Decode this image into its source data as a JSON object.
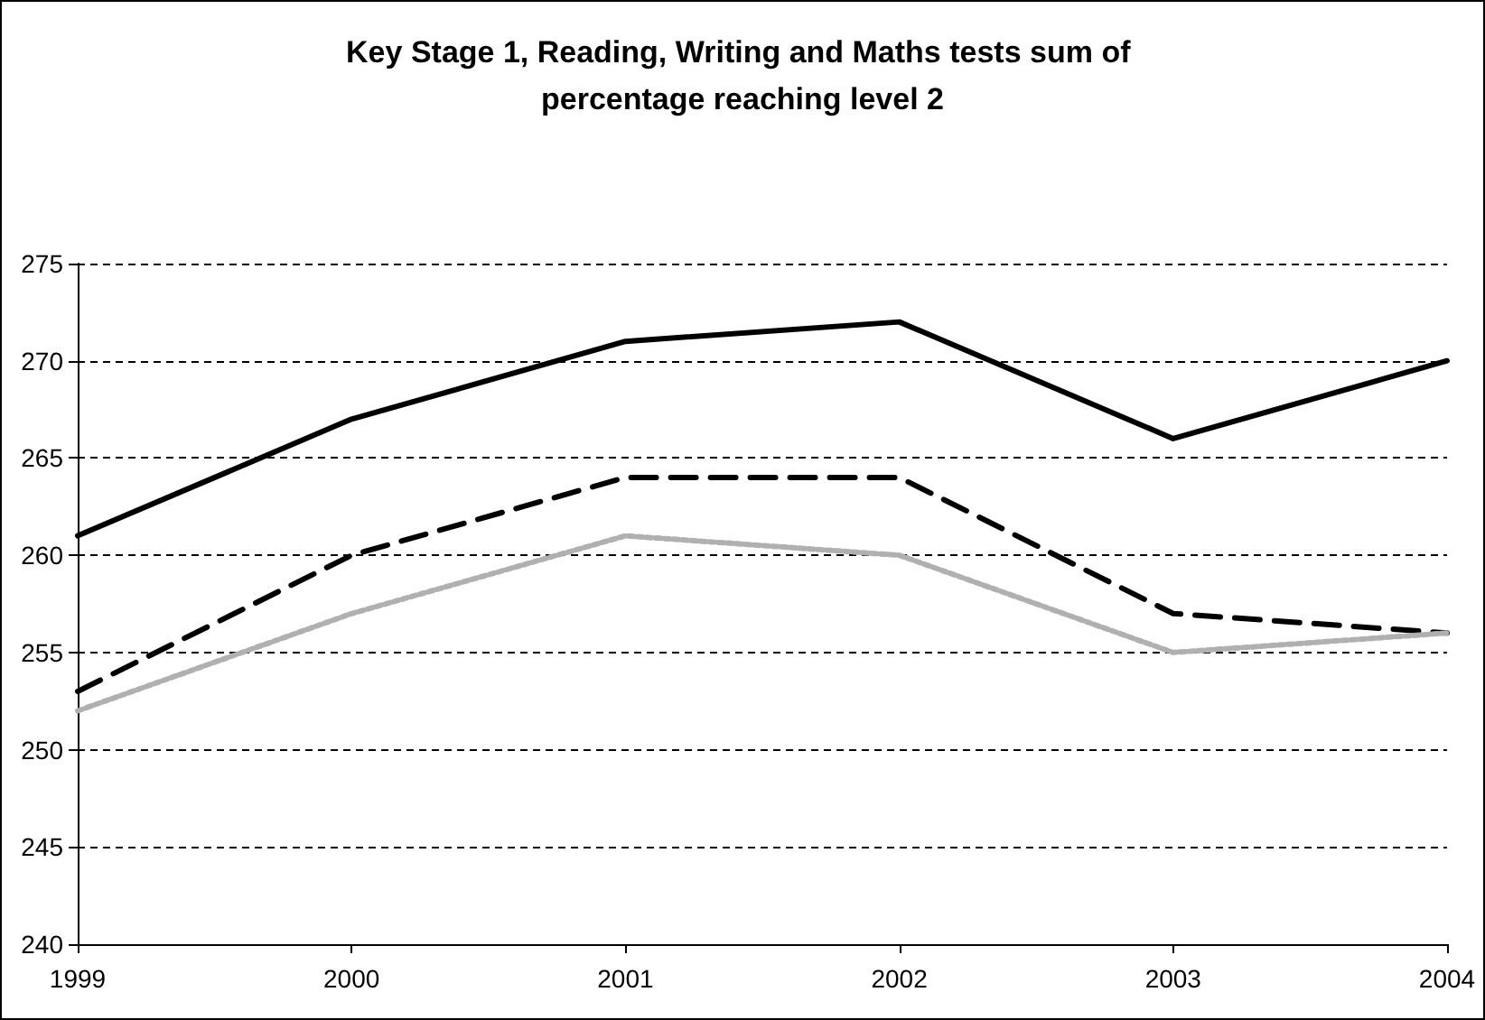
{
  "chart_data": {
    "type": "line",
    "title": "Key Stage 1, Reading, Writing and Maths tests sum of percentage reaching level 2",
    "categories": [
      "1999",
      "2000",
      "2001",
      "2002",
      "2003",
      "2004"
    ],
    "series": [
      {
        "color": "#000000",
        "line_style": "solid",
        "values": [
          261,
          267,
          271,
          272,
          266,
          270
        ]
      },
      {
        "color": "#000000",
        "line_style": "dashed",
        "values": [
          253,
          260,
          264,
          264,
          257,
          256
        ]
      },
      {
        "color": "#b0b0b0",
        "line_style": "dotted",
        "values": [
          252,
          257,
          261,
          260,
          255,
          256
        ]
      }
    ],
    "ylim": [
      240,
      275
    ],
    "yticks": [
      240,
      245,
      250,
      255,
      260,
      265,
      270,
      275
    ],
    "grid": "y",
    "marker": "none"
  }
}
